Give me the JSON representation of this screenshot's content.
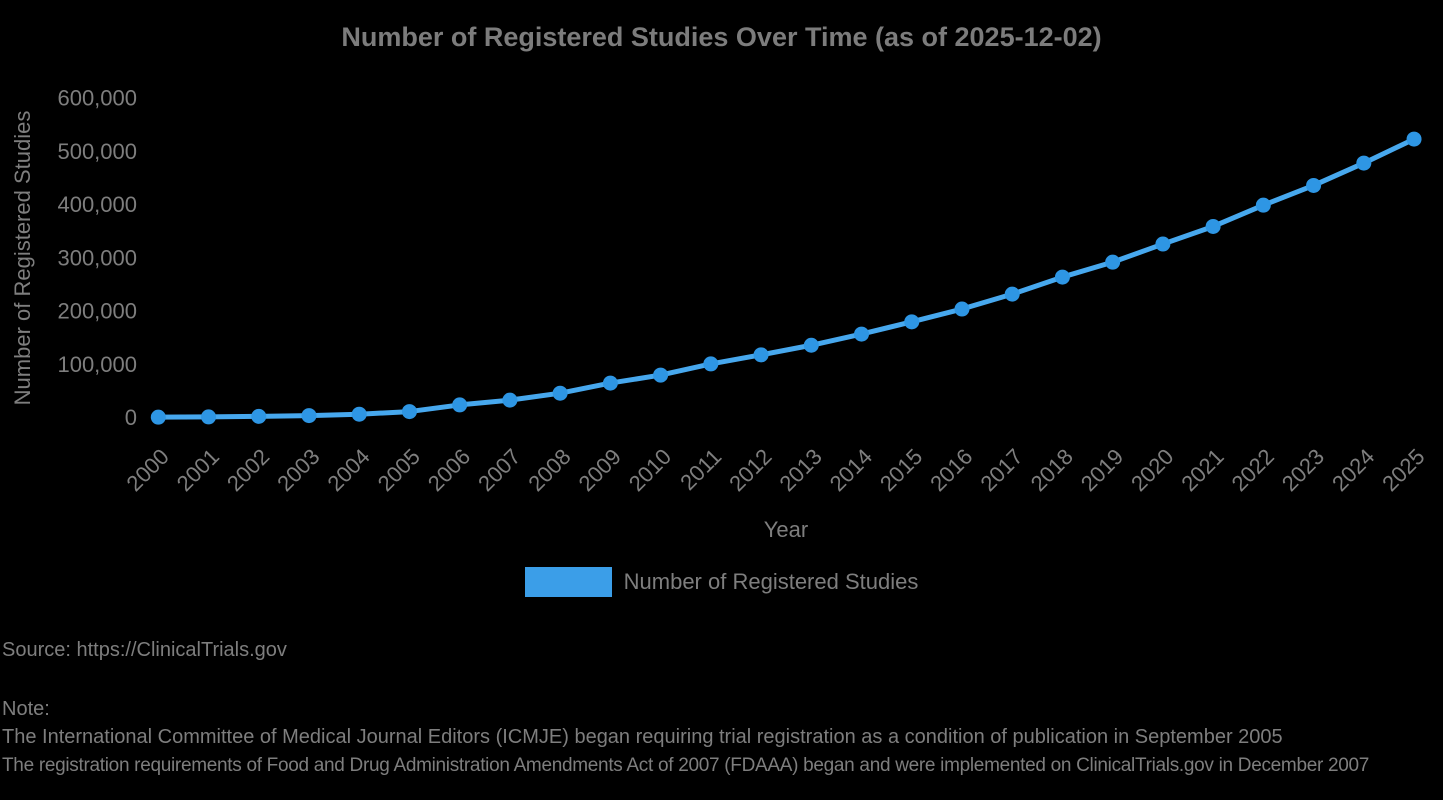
{
  "colors": {
    "background": "#000000",
    "text": "#7e7e7e",
    "line": "#47a8ee",
    "marker": "#2e96e4",
    "legend_swatch": "#3b9ee8"
  },
  "chart_data": {
    "type": "line",
    "title": "Number of Registered Studies Over Time (as of 2025-12-02)",
    "xlabel": "Year",
    "ylabel": "Number of Registered Studies",
    "categories": [
      "2000",
      "2001",
      "2002",
      "2003",
      "2004",
      "2005",
      "2006",
      "2007",
      "2008",
      "2009",
      "2010",
      "2011",
      "2012",
      "2013",
      "2014",
      "2015",
      "2016",
      "2017",
      "2018",
      "2019",
      "2020",
      "2021",
      "2022",
      "2023",
      "2024",
      "2025"
    ],
    "series": [
      {
        "name": "Number of Registered Studies",
        "values": [
          1000,
          1500,
          2500,
          4000,
          6500,
          11500,
          24000,
          33000,
          46000,
          65000,
          80000,
          101000,
          118000,
          136000,
          157000,
          180000,
          204000,
          232000,
          264000,
          292000,
          326000,
          359000,
          399000,
          436000,
          478000,
          523000
        ]
      }
    ],
    "ylim": [
      0,
      600000
    ],
    "yticks": [
      0,
      100000,
      200000,
      300000,
      400000,
      500000,
      600000
    ],
    "ytick_labels": [
      "0",
      "100,000",
      "200,000",
      "300,000",
      "400,000",
      "500,000",
      "600,000"
    ],
    "grid": false,
    "legend_position": "bottom-center",
    "marker": "circle"
  },
  "footer": {
    "source": "Source: https://ClinicalTrials.gov",
    "note_label": "Note:",
    "notes": [
      "The International Committee of Medical Journal Editors (ICMJE) began requiring trial registration as a condition of publication in September 2005",
      "The registration requirements of Food and Drug Administration Amendments Act of 2007 (FDAAA) began and were implemented on ClinicalTrials.gov in December 2007"
    ]
  }
}
